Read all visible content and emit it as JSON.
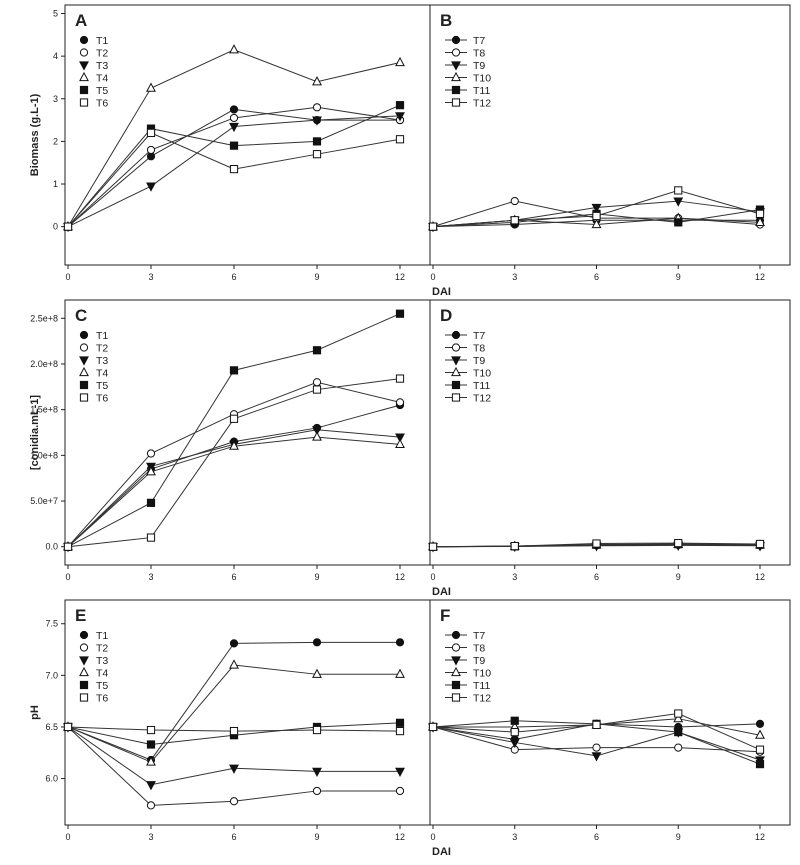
{
  "x_axis_label": "DAI",
  "chart_data": [
    {
      "type": "line",
      "panel": "A",
      "ylabel": "Biomass (g.L-1)",
      "xlabel": "DAI",
      "x": [
        0,
        3,
        6,
        9,
        12
      ],
      "xticks": [
        "0",
        "3",
        "6",
        "9",
        "12"
      ],
      "yticks": [
        0,
        1,
        2,
        3,
        4,
        5
      ],
      "ytick_labels": [
        "0",
        "1",
        "2",
        "3",
        "4",
        "5"
      ],
      "ylim": [
        -0.9,
        5.2
      ],
      "legend_position": "top-left",
      "series": [
        {
          "name": "T1",
          "marker": "circle-filled",
          "values": [
            0,
            1.65,
            2.75,
            2.5,
            2.5
          ]
        },
        {
          "name": "T2",
          "marker": "circle-open",
          "values": [
            0,
            1.8,
            2.55,
            2.8,
            2.5
          ]
        },
        {
          "name": "T3",
          "marker": "triangle-down-filled",
          "values": [
            0,
            0.95,
            2.35,
            2.5,
            2.6
          ]
        },
        {
          "name": "T4",
          "marker": "triangle-up-open",
          "values": [
            0,
            3.25,
            4.15,
            3.4,
            3.85
          ]
        },
        {
          "name": "T5",
          "marker": "square-filled",
          "values": [
            0,
            2.3,
            1.9,
            2.0,
            2.85
          ]
        },
        {
          "name": "T6",
          "marker": "square-open",
          "values": [
            0,
            2.2,
            1.35,
            1.7,
            2.05
          ]
        }
      ]
    },
    {
      "type": "line",
      "panel": "B",
      "ylabel": "",
      "xlabel": "",
      "x": [
        0,
        3,
        6,
        9,
        12
      ],
      "xticks": [
        "0",
        "3",
        "6",
        "9",
        "12"
      ],
      "ylim": [
        -0.9,
        5.2
      ],
      "legend_position": "top-left",
      "series": [
        {
          "name": "T7",
          "marker": "circle-filled",
          "values": [
            0,
            0.05,
            0.15,
            0.15,
            0.15
          ]
        },
        {
          "name": "T8",
          "marker": "circle-open",
          "values": [
            0,
            0.6,
            0.2,
            0.2,
            0.05
          ]
        },
        {
          "name": "T9",
          "marker": "triangle-down-filled",
          "values": [
            0,
            0.15,
            0.45,
            0.6,
            0.35
          ]
        },
        {
          "name": "T10",
          "marker": "triangle-up-open",
          "values": [
            0,
            0.15,
            0.05,
            0.2,
            0.1
          ]
        },
        {
          "name": "T11",
          "marker": "square-filled",
          "values": [
            0,
            0.1,
            0.3,
            0.1,
            0.4
          ]
        },
        {
          "name": "T12",
          "marker": "square-open",
          "values": [
            0,
            0.15,
            0.25,
            0.85,
            0.3
          ]
        }
      ]
    },
    {
      "type": "line",
      "panel": "C",
      "ylabel": "[conidia.mL-1]",
      "xlabel": "DAI",
      "x": [
        0,
        3,
        6,
        9,
        12
      ],
      "xticks": [
        "0",
        "3",
        "6",
        "9",
        "12"
      ],
      "yticks": [
        0,
        50000000,
        100000000,
        150000000,
        200000000,
        250000000
      ],
      "ytick_labels": [
        "0.0",
        "5.0e+7",
        "1.0e+8",
        "1.5e+8",
        "2.0e+8",
        "2.5e+8"
      ],
      "ylim": [
        -20000000,
        270000000
      ],
      "legend_position": "top-left",
      "series": [
        {
          "name": "T1",
          "marker": "circle-filled",
          "values": [
            0,
            85000000,
            115000000,
            130000000,
            155000000
          ]
        },
        {
          "name": "T2",
          "marker": "circle-open",
          "values": [
            0,
            102000000,
            145000000,
            180000000,
            158000000
          ]
        },
        {
          "name": "T3",
          "marker": "triangle-down-filled",
          "values": [
            0,
            88000000,
            112000000,
            128000000,
            120000000
          ]
        },
        {
          "name": "T4",
          "marker": "triangle-up-open",
          "values": [
            0,
            82000000,
            110000000,
            120000000,
            112000000
          ]
        },
        {
          "name": "T5",
          "marker": "square-filled",
          "values": [
            0,
            48000000,
            193000000,
            215000000,
            255000000
          ]
        },
        {
          "name": "T6",
          "marker": "square-open",
          "values": [
            0,
            10000000,
            140000000,
            172000000,
            184000000
          ]
        }
      ]
    },
    {
      "type": "line",
      "panel": "D",
      "ylabel": "",
      "xlabel": "",
      "x": [
        0,
        3,
        6,
        9,
        12
      ],
      "xticks": [
        "0",
        "3",
        "6",
        "9",
        "12"
      ],
      "ylim": [
        -20000000,
        270000000
      ],
      "legend_position": "top-left",
      "series": [
        {
          "name": "T7",
          "marker": "circle-filled",
          "values": [
            0,
            500000,
            1500000,
            2000000,
            1500000
          ]
        },
        {
          "name": "T8",
          "marker": "circle-open",
          "values": [
            0,
            800000,
            2500000,
            3000000,
            2500000
          ]
        },
        {
          "name": "T9",
          "marker": "triangle-down-filled",
          "values": [
            0,
            300000,
            1000000,
            1500000,
            1000000
          ]
        },
        {
          "name": "T10",
          "marker": "triangle-up-open",
          "values": [
            0,
            600000,
            2000000,
            2500000,
            2000000
          ]
        },
        {
          "name": "T11",
          "marker": "square-filled",
          "values": [
            0,
            400000,
            2200000,
            2800000,
            2200000
          ]
        },
        {
          "name": "T12",
          "marker": "square-open",
          "values": [
            0,
            700000,
            3500000,
            4000000,
            3000000
          ]
        }
      ]
    },
    {
      "type": "line",
      "panel": "E",
      "ylabel": "pH",
      "xlabel": "DAI",
      "x": [
        0,
        3,
        6,
        9,
        12
      ],
      "xticks": [
        "0",
        "3",
        "6",
        "9",
        "12"
      ],
      "yticks": [
        6.0,
        6.5,
        7.0,
        7.5
      ],
      "ytick_labels": [
        "6.0",
        "6.5",
        "7.0",
        "7.5"
      ],
      "ylim": [
        5.55,
        7.73
      ],
      "legend_position": "top-left",
      "series": [
        {
          "name": "T1",
          "marker": "circle-filled",
          "values": [
            6.5,
            6.18,
            7.31,
            7.32,
            7.32
          ]
        },
        {
          "name": "T2",
          "marker": "circle-open",
          "values": [
            6.5,
            5.74,
            5.78,
            5.88,
            5.88
          ]
        },
        {
          "name": "T3",
          "marker": "triangle-down-filled",
          "values": [
            6.5,
            5.94,
            6.1,
            6.07,
            6.07
          ]
        },
        {
          "name": "T4",
          "marker": "triangle-up-open",
          "values": [
            6.5,
            6.16,
            7.1,
            7.01,
            7.01
          ]
        },
        {
          "name": "T5",
          "marker": "square-filled",
          "values": [
            6.5,
            6.33,
            6.42,
            6.5,
            6.54
          ]
        },
        {
          "name": "T6",
          "marker": "square-open",
          "values": [
            6.5,
            6.47,
            6.46,
            6.47,
            6.46
          ]
        }
      ]
    },
    {
      "type": "line",
      "panel": "F",
      "ylabel": "",
      "xlabel": "",
      "x": [
        0,
        3,
        6,
        9,
        12
      ],
      "xticks": [
        "0",
        "3",
        "6",
        "9",
        "12"
      ],
      "ylim": [
        5.55,
        7.73
      ],
      "legend_position": "top-left",
      "series": [
        {
          "name": "T7",
          "marker": "circle-filled",
          "values": [
            6.5,
            6.38,
            6.53,
            6.5,
            6.53
          ]
        },
        {
          "name": "T8",
          "marker": "circle-open",
          "values": [
            6.5,
            6.28,
            6.3,
            6.3,
            6.26
          ]
        },
        {
          "name": "T9",
          "marker": "triangle-down-filled",
          "values": [
            6.5,
            6.35,
            6.22,
            6.45,
            6.18
          ]
        },
        {
          "name": "T10",
          "marker": "triangle-up-open",
          "values": [
            6.5,
            6.5,
            6.52,
            6.58,
            6.42
          ]
        },
        {
          "name": "T11",
          "marker": "square-filled",
          "values": [
            6.5,
            6.56,
            6.53,
            6.45,
            6.14
          ]
        },
        {
          "name": "T12",
          "marker": "square-open",
          "values": [
            6.5,
            6.45,
            6.52,
            6.63,
            6.28
          ]
        }
      ]
    }
  ]
}
